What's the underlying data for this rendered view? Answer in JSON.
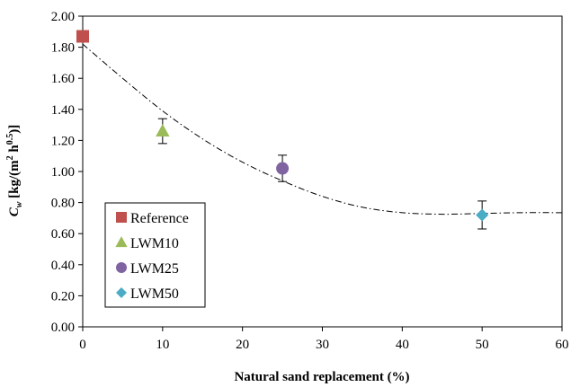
{
  "chart_data": {
    "type": "scatter",
    "xlabel": "Natural sand replacement (%)",
    "ylabel": "C_w [kg/(m² h^0.5)]",
    "ylabel_parts": {
      "main": "C",
      "sub": "w",
      "mid": " [kg/(m",
      "sup1": "2",
      "mid2": " h",
      "sup2": "0.5",
      "end": ")]"
    },
    "xlim": [
      0,
      60
    ],
    "ylim": [
      0,
      2.0
    ],
    "x_ticks": [
      "0",
      "10",
      "20",
      "30",
      "40",
      "50",
      "60"
    ],
    "y_ticks": [
      "0.00",
      "0.20",
      "0.40",
      "0.60",
      "0.80",
      "1.00",
      "1.20",
      "1.40",
      "1.60",
      "1.80",
      "2.00"
    ],
    "grid": false,
    "legend_position": "bottom-left",
    "series": [
      {
        "name": "Reference",
        "marker": "square",
        "color": "#c0504d",
        "x": 0,
        "y": 1.87,
        "error": 0
      },
      {
        "name": "LWM10",
        "marker": "triangle",
        "color": "#9bbb59",
        "x": 10,
        "y": 1.26,
        "error": 0.08
      },
      {
        "name": "LWM25",
        "marker": "circle",
        "color": "#8064a2",
        "x": 25,
        "y": 1.02,
        "error": 0.085
      },
      {
        "name": "LWM50",
        "marker": "diamond",
        "color": "#4bacc6",
        "x": 50,
        "y": 0.72,
        "error": 0.09
      }
    ],
    "trendline": {
      "style": "dash-dot",
      "color": "#000000",
      "points": [
        [
          0,
          1.82
        ],
        [
          5,
          1.6
        ],
        [
          10,
          1.39
        ],
        [
          15,
          1.21
        ],
        [
          20,
          1.06
        ],
        [
          25,
          0.94
        ],
        [
          30,
          0.84
        ],
        [
          35,
          0.77
        ],
        [
          40,
          0.735
        ],
        [
          45,
          0.725
        ],
        [
          50,
          0.73
        ],
        [
          55,
          0.735
        ],
        [
          60,
          0.735
        ]
      ]
    }
  }
}
